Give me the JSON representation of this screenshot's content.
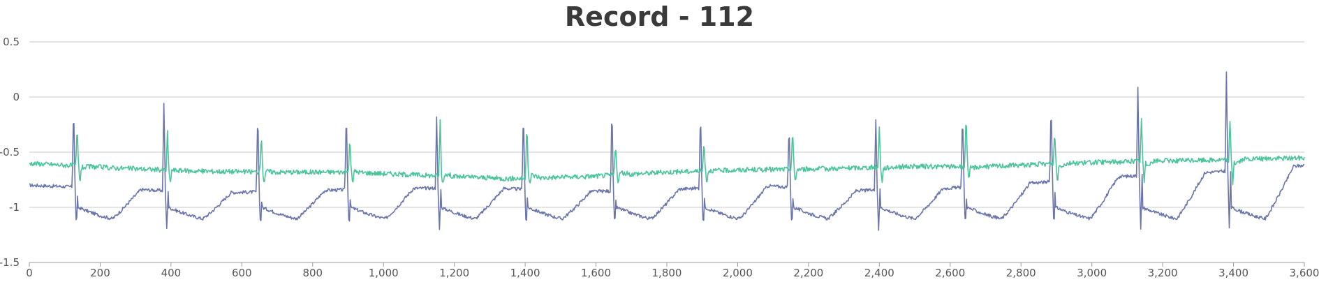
{
  "chart_data": {
    "type": "line",
    "title": "Record - 112",
    "xlabel": "",
    "ylabel": "",
    "xlim": [
      0,
      3600
    ],
    "ylim": [
      -1.5,
      0.5
    ],
    "x_ticks": [
      0,
      200,
      400,
      600,
      800,
      1000,
      1200,
      1400,
      1600,
      1800,
      2000,
      2200,
      2400,
      2600,
      2800,
      3000,
      3200,
      3400,
      3600
    ],
    "x_tick_labels": [
      "0",
      "200",
      "400",
      "600",
      "800",
      "1,000",
      "1,200",
      "1,400",
      "1,600",
      "1,800",
      "2,000",
      "2,200",
      "2,400",
      "2,600",
      "2,800",
      "3,000",
      "3,200",
      "3,400",
      "3,600"
    ],
    "y_ticks": [
      -1.5,
      -1,
      -0.5,
      0,
      0.5
    ],
    "y_tick_labels": [
      "-1.5",
      "-1",
      "-0.5",
      "0",
      "0.5"
    ],
    "grid": true,
    "legend": "none",
    "beats": [
      {
        "x": 125,
        "peak1": -0.04,
        "peak2": -0.27
      },
      {
        "x": 380,
        "peak1": -0.05,
        "peak2": -0.32
      },
      {
        "x": 645,
        "peak1": -0.11,
        "peak2": -0.33
      },
      {
        "x": 895,
        "peak1": -0.1,
        "peak2": -0.36
      },
      {
        "x": 1150,
        "peak1": -0.19,
        "peak2": -0.2
      },
      {
        "x": 1395,
        "peak1": -0.09,
        "peak2": -0.21
      },
      {
        "x": 1645,
        "peak1": -0.06,
        "peak2": -0.4
      },
      {
        "x": 1895,
        "peak1": -0.1,
        "peak2": -0.38
      },
      {
        "x": 2145,
        "peak1": -0.23,
        "peak2": -0.28
      },
      {
        "x": 2390,
        "peak1": -0.19,
        "peak2": -0.27
      },
      {
        "x": 2635,
        "peak1": -0.12,
        "peak2": -0.12
      },
      {
        "x": 2885,
        "peak1": -0.03,
        "peak2": -0.31
      },
      {
        "x": 3130,
        "peak1": 0.1,
        "peak2": -0.21
      },
      {
        "x": 3380,
        "peak1": 0.22,
        "peak2": -0.23
      }
    ],
    "series": [
      {
        "color": "#6b75aa",
        "baseline": [
          -0.8,
          -0.83,
          -0.87,
          -0.85,
          -0.83,
          -0.82,
          -0.86,
          -0.84,
          -0.8,
          -0.85,
          -0.83,
          -0.78,
          -0.72,
          -0.68,
          -0.62
        ],
        "drop": -1.2,
        "waveStart": -1.0,
        "waveMin": -1.12
      },
      {
        "color": "#4cc49a",
        "baseline": [
          -0.6,
          -0.64,
          -0.67,
          -0.68,
          -0.68,
          -0.71,
          -0.74,
          -0.72,
          -0.68,
          -0.66,
          -0.65,
          -0.63,
          -0.63,
          -0.6,
          -0.58,
          -0.57,
          -0.55
        ],
        "drop": -0.78,
        "waveStart": -0.66,
        "waveMin": -0.7
      }
    ]
  }
}
